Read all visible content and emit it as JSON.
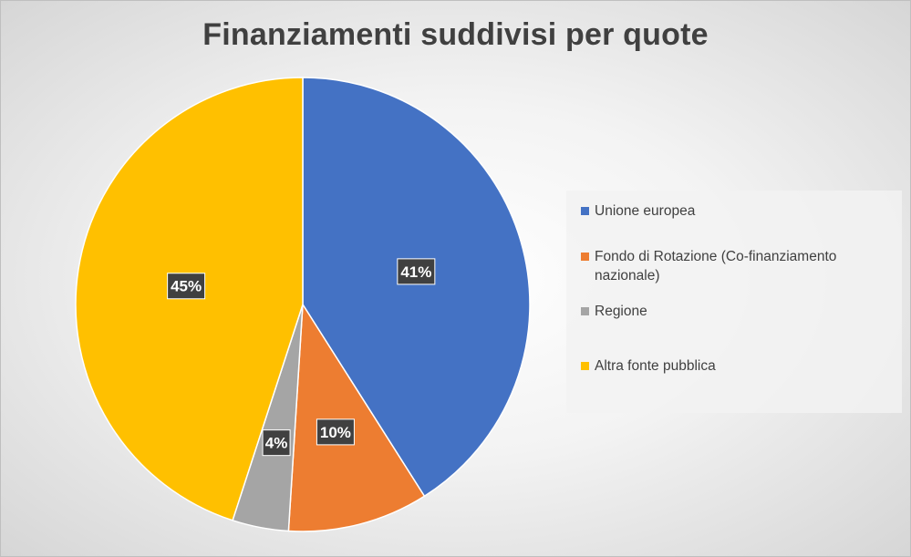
{
  "chart_data": {
    "type": "pie",
    "title": "Finanziamenti suddivisi per quote",
    "legend_position": "right",
    "slices": [
      {
        "name": "Unione europea",
        "value": 41,
        "label": "41%",
        "color": "#4472C4"
      },
      {
        "name": "Fondo di Rotazione (Co-finanziamento nazionale)",
        "value": 10,
        "label": "10%",
        "color": "#ED7D31"
      },
      {
        "name": "Regione",
        "value": 4,
        "label": "4%",
        "color": "#A5A5A5"
      },
      {
        "name": "Altra fonte pubblica",
        "value": 45,
        "label": "45%",
        "color": "#FFC000"
      }
    ]
  }
}
